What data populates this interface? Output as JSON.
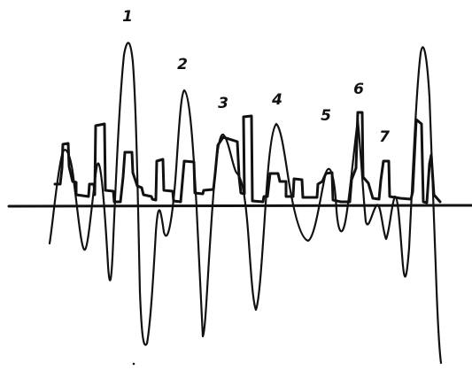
{
  "peak_labels": [
    "1",
    "2",
    "3",
    "4",
    "5",
    "6",
    "7"
  ],
  "colors": {
    "ink": "#111111",
    "background": "#ffffff"
  }
}
